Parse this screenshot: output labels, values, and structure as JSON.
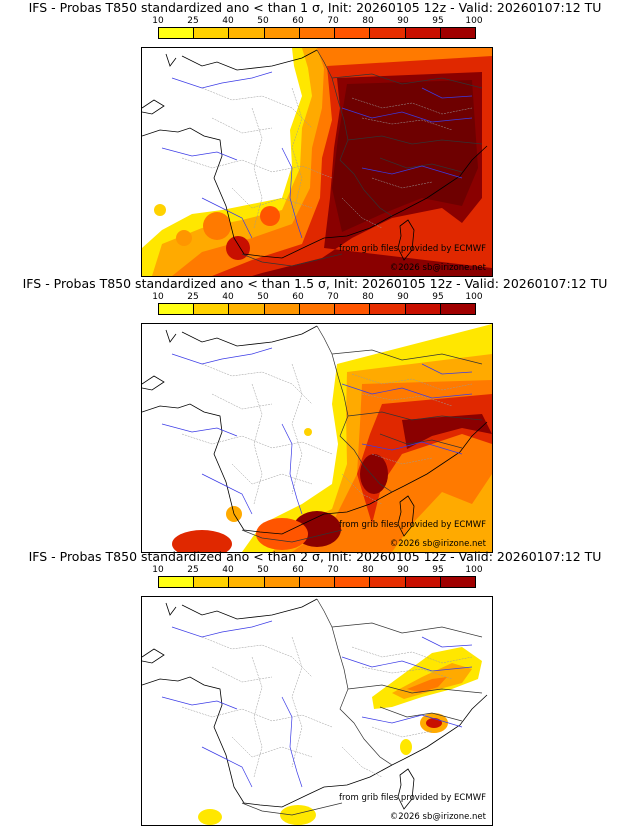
{
  "scale": {
    "labels": [
      "10",
      "25",
      "40",
      "50",
      "60",
      "70",
      "80",
      "90",
      "95",
      "100"
    ],
    "colors": [
      "#ffff14",
      "#ffd200",
      "#ffb400",
      "#ff9600",
      "#ff7300",
      "#ff5500",
      "#e62d00",
      "#c80f00",
      "#a00000",
      "#6e0000"
    ]
  },
  "panels": [
    {
      "title": "IFS - Probas T850  standardized ano < than 1 σ, Init: 20260105 12z - Valid: 20260107:12 TU",
      "credit_source": "from grib files provided by ECMWF",
      "credit_copyright": "©2026 sb@irizone.net"
    },
    {
      "title": "IFS - Probas T850  standardized ano < than 1.5 σ, Init: 20260105 12z - Valid: 20260107:12 TU",
      "credit_source": "from grib files provided by ECMWF",
      "credit_copyright": "©2026 sb@irizone.net"
    },
    {
      "title": "IFS - Probas T850  standardized ano < than 2 σ, Init: 20260105 12z - Valid: 20260107:12 TU",
      "credit_source": "from grib files provided by ECMWF",
      "credit_copyright": "©2026 sb@irizone.net"
    }
  ]
}
